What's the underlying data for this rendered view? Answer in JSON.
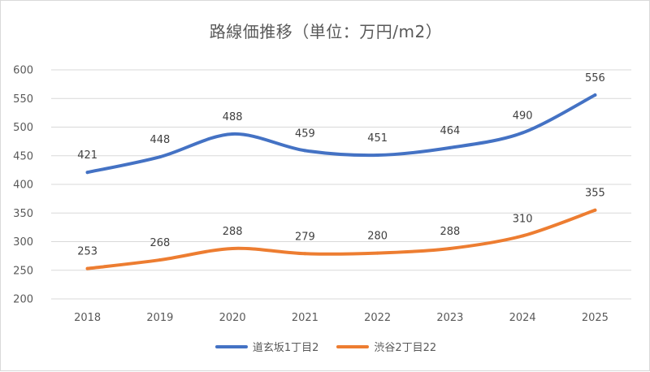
{
  "chart_data": {
    "type": "line",
    "title": "路線価推移（単位：万円/m2）",
    "categories": [
      "2018",
      "2019",
      "2020",
      "2021",
      "2022",
      "2023",
      "2024",
      "2025"
    ],
    "ylim": [
      200,
      600
    ],
    "yticks": [
      200,
      250,
      300,
      350,
      400,
      450,
      500,
      550,
      600
    ],
    "grid": "horizontal",
    "legend_position": "bottom",
    "series": [
      {
        "name": "道玄坂1丁目2",
        "color": "#4472c4",
        "values": [
          421,
          448,
          488,
          459,
          451,
          464,
          490,
          556
        ]
      },
      {
        "name": "渋谷2丁目22",
        "color": "#ed7d31",
        "values": [
          253,
          268,
          288,
          279,
          280,
          288,
          310,
          355
        ]
      }
    ]
  }
}
